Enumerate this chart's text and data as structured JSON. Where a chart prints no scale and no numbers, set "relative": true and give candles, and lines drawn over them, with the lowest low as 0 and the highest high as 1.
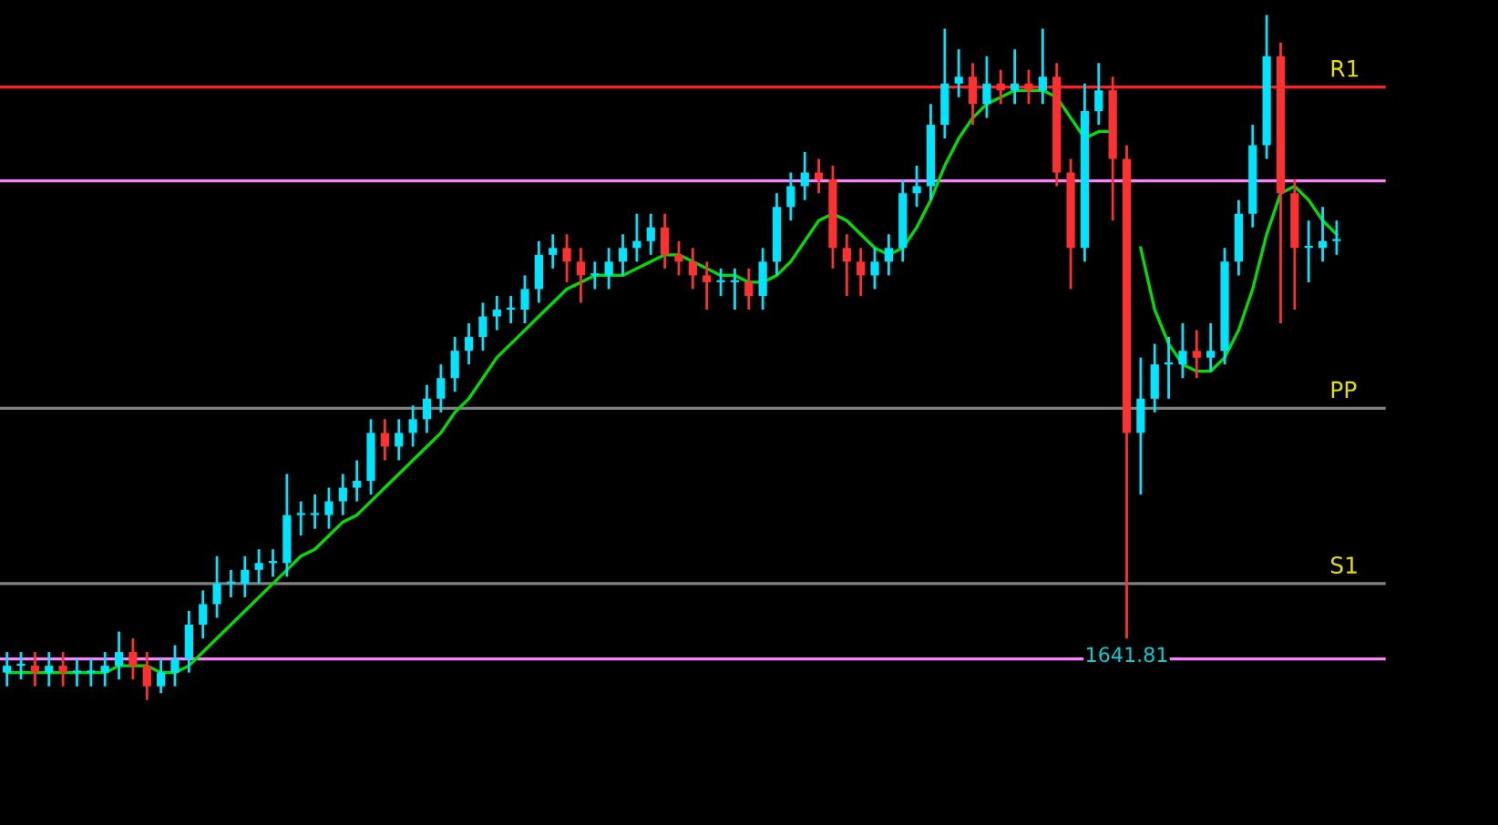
{
  "chart_data": {
    "type": "candlestick",
    "relative": true,
    "categories": [
      null,
      null,
      null,
      null,
      null,
      null,
      null,
      null,
      null,
      null,
      null,
      null,
      null,
      null,
      null,
      null,
      null,
      null,
      null,
      null,
      null,
      null,
      null,
      null,
      null,
      null,
      null,
      null,
      null,
      null,
      null,
      null,
      null,
      null,
      null,
      null,
      null,
      null,
      null,
      null,
      null,
      null,
      null,
      null,
      null,
      null,
      null,
      null,
      null,
      null,
      null,
      null,
      null,
      null,
      null,
      null,
      null,
      null,
      null,
      null,
      null,
      null,
      null,
      null,
      null,
      null,
      null,
      null,
      null,
      null,
      null,
      null,
      null,
      null,
      null,
      null,
      null,
      null,
      null,
      null,
      null,
      null,
      null,
      null,
      null,
      null,
      null,
      null,
      null,
      null,
      null,
      null,
      null,
      null,
      null,
      null
    ],
    "ohlc": [
      [
        0.04,
        0.07,
        0.02,
        0.05
      ],
      [
        0.05,
        0.07,
        0.03,
        0.05
      ],
      [
        0.05,
        0.07,
        0.02,
        0.04
      ],
      [
        0.04,
        0.07,
        0.02,
        0.05
      ],
      [
        0.05,
        0.07,
        0.02,
        0.04
      ],
      [
        0.04,
        0.06,
        0.02,
        0.04
      ],
      [
        0.04,
        0.06,
        0.02,
        0.04
      ],
      [
        0.04,
        0.07,
        0.02,
        0.05
      ],
      [
        0.05,
        0.1,
        0.03,
        0.07
      ],
      [
        0.07,
        0.09,
        0.03,
        0.05
      ],
      [
        0.05,
        0.07,
        0,
        0.02
      ],
      [
        0.02,
        0.06,
        0.01,
        0.04
      ],
      [
        0.04,
        0.08,
        0.02,
        0.06
      ],
      [
        0.06,
        0.13,
        0.04,
        0.11
      ],
      [
        0.11,
        0.16,
        0.09,
        0.14
      ],
      [
        0.14,
        0.21,
        0.12,
        0.17
      ],
      [
        0.17,
        0.19,
        0.15,
        0.17
      ],
      [
        0.17,
        0.21,
        0.15,
        0.19
      ],
      [
        0.19,
        0.22,
        0.17,
        0.2
      ],
      [
        0.2,
        0.22,
        0.18,
        0.2
      ],
      [
        0.2,
        0.33,
        0.18,
        0.27
      ],
      [
        0.27,
        0.29,
        0.24,
        0.27
      ],
      [
        0.27,
        0.3,
        0.25,
        0.27
      ],
      [
        0.27,
        0.31,
        0.25,
        0.29
      ],
      [
        0.29,
        0.33,
        0.27,
        0.31
      ],
      [
        0.31,
        0.35,
        0.29,
        0.32
      ],
      [
        0.32,
        0.41,
        0.3,
        0.39
      ],
      [
        0.39,
        0.41,
        0.35,
        0.37
      ],
      [
        0.37,
        0.41,
        0.35,
        0.39
      ],
      [
        0.39,
        0.43,
        0.37,
        0.41
      ],
      [
        0.41,
        0.46,
        0.39,
        0.44
      ],
      [
        0.44,
        0.49,
        0.42,
        0.47
      ],
      [
        0.47,
        0.53,
        0.45,
        0.51
      ],
      [
        0.51,
        0.55,
        0.49,
        0.53
      ],
      [
        0.53,
        0.58,
        0.51,
        0.56
      ],
      [
        0.56,
        0.59,
        0.54,
        0.57
      ],
      [
        0.57,
        0.59,
        0.55,
        0.57
      ],
      [
        0.57,
        0.62,
        0.55,
        0.6
      ],
      [
        0.6,
        0.67,
        0.58,
        0.65
      ],
      [
        0.65,
        0.68,
        0.63,
        0.66
      ],
      [
        0.66,
        0.68,
        0.61,
        0.64
      ],
      [
        0.64,
        0.66,
        0.58,
        0.62
      ],
      [
        0.62,
        0.64,
        0.6,
        0.62
      ],
      [
        0.62,
        0.66,
        0.6,
        0.64
      ],
      [
        0.64,
        0.68,
        0.62,
        0.66
      ],
      [
        0.66,
        0.71,
        0.64,
        0.67
      ],
      [
        0.67,
        0.71,
        0.65,
        0.69
      ],
      [
        0.69,
        0.71,
        0.63,
        0.65
      ],
      [
        0.65,
        0.67,
        0.62,
        0.64
      ],
      [
        0.64,
        0.66,
        0.6,
        0.62
      ],
      [
        0.62,
        0.64,
        0.57,
        0.61
      ],
      [
        0.61,
        0.63,
        0.59,
        0.61
      ],
      [
        0.61,
        0.63,
        0.57,
        0.61
      ],
      [
        0.61,
        0.63,
        0.57,
        0.59
      ],
      [
        0.59,
        0.66,
        0.57,
        0.64
      ],
      [
        0.64,
        0.74,
        0.62,
        0.72
      ],
      [
        0.72,
        0.77,
        0.7,
        0.75
      ],
      [
        0.75,
        0.8,
        0.73,
        0.77
      ],
      [
        0.77,
        0.79,
        0.74,
        0.76
      ],
      [
        0.76,
        0.78,
        0.63,
        0.66
      ],
      [
        0.66,
        0.68,
        0.59,
        0.64
      ],
      [
        0.64,
        0.66,
        0.59,
        0.62
      ],
      [
        0.62,
        0.66,
        0.6,
        0.64
      ],
      [
        0.64,
        0.68,
        0.62,
        0.66
      ],
      [
        0.66,
        0.76,
        0.64,
        0.74
      ],
      [
        0.74,
        0.78,
        0.72,
        0.75
      ],
      [
        0.75,
        0.87,
        0.73,
        0.84
      ],
      [
        0.84,
        0.98,
        0.82,
        0.9
      ],
      [
        0.9,
        0.95,
        0.88,
        0.91
      ],
      [
        0.91,
        0.93,
        0.84,
        0.87
      ],
      [
        0.87,
        0.94,
        0.85,
        0.9
      ],
      [
        0.9,
        0.92,
        0.87,
        0.89
      ],
      [
        0.89,
        0.95,
        0.87,
        0.9
      ],
      [
        0.9,
        0.92,
        0.87,
        0.89
      ],
      [
        0.89,
        0.98,
        0.87,
        0.91
      ],
      [
        0.91,
        0.93,
        0.75,
        0.77
      ],
      [
        0.77,
        0.79,
        0.6,
        0.66
      ],
      [
        0.66,
        0.9,
        0.64,
        0.86
      ],
      [
        0.86,
        0.93,
        0.84,
        0.89
      ],
      [
        0.89,
        0.91,
        0.7,
        0.79
      ],
      [
        0.79,
        0.81,
        0.09,
        0.39
      ],
      [
        0.39,
        0.5,
        0.3,
        0.44
      ],
      [
        0.44,
        0.52,
        0.42,
        0.49
      ],
      [
        0.49,
        0.53,
        0.44,
        0.49
      ],
      [
        0.49,
        0.55,
        0.47,
        0.51
      ],
      [
        0.51,
        0.54,
        0.47,
        0.5
      ],
      [
        0.5,
        0.55,
        0.48,
        0.51
      ],
      [
        0.51,
        0.66,
        0.49,
        0.64
      ],
      [
        0.64,
        0.73,
        0.62,
        0.71
      ],
      [
        0.71,
        0.84,
        0.69,
        0.81
      ],
      [
        0.81,
        1,
        0.79,
        0.94
      ],
      [
        0.94,
        0.96,
        0.55,
        0.74
      ],
      [
        0.74,
        0.76,
        0.57,
        0.66
      ],
      [
        0.66,
        0.7,
        0.61,
        0.66
      ],
      [
        0.66,
        0.72,
        0.64,
        0.67
      ],
      [
        0.67,
        0.7,
        0.65,
        0.67
      ]
    ],
    "series": [
      {
        "type": "line",
        "color": "#00e000",
        "values": [
          0.04,
          0.04,
          0.04,
          0.04,
          0.04,
          0.04,
          0.04,
          0.04,
          0.05,
          0.05,
          0.05,
          0.04,
          0.04,
          0.05,
          0.07,
          0.09,
          0.11,
          0.13,
          0.15,
          0.17,
          0.19,
          0.21,
          0.22,
          0.24,
          0.26,
          0.27,
          0.29,
          0.31,
          0.33,
          0.35,
          0.37,
          0.39,
          0.42,
          0.44,
          0.47,
          0.5,
          0.52,
          0.54,
          0.56,
          0.58,
          0.6,
          0.61,
          0.62,
          0.62,
          0.62,
          0.63,
          0.64,
          0.65,
          0.65,
          0.64,
          0.63,
          0.62,
          0.62,
          0.61,
          0.61,
          0.62,
          0.64,
          0.67,
          0.7,
          0.71,
          0.7,
          0.68,
          0.66,
          0.65,
          0.66,
          0.69,
          0.73,
          0.78,
          0.82,
          0.85,
          0.87,
          0.88,
          0.89,
          0.89,
          0.89,
          0.88,
          0.85,
          0.82,
          0.83,
          0.83,
          null,
          0.66,
          0.57,
          0.52,
          0.49,
          0.48,
          0.48,
          0.5,
          0.54,
          0.6,
          0.68,
          0.74,
          0.75,
          0.73,
          0.7,
          0.68
        ]
      }
    ],
    "ref_lines": [
      {
        "axis": "y",
        "value": 0.895,
        "label": "R1",
        "color": "#ff2020"
      },
      {
        "axis": "y",
        "value": 0.426,
        "label": "PP",
        "color": "#808080"
      },
      {
        "axis": "y",
        "value": 0.17,
        "label": "S1",
        "color": "#808080"
      },
      {
        "axis": "y",
        "value": 0.758,
        "color": "#ff80ff"
      },
      {
        "axis": "y",
        "value": 0.06,
        "color": "#ff80ff"
      }
    ],
    "annotations": [
      {
        "text": "1641.81",
        "y": 0.09
      }
    ]
  }
}
